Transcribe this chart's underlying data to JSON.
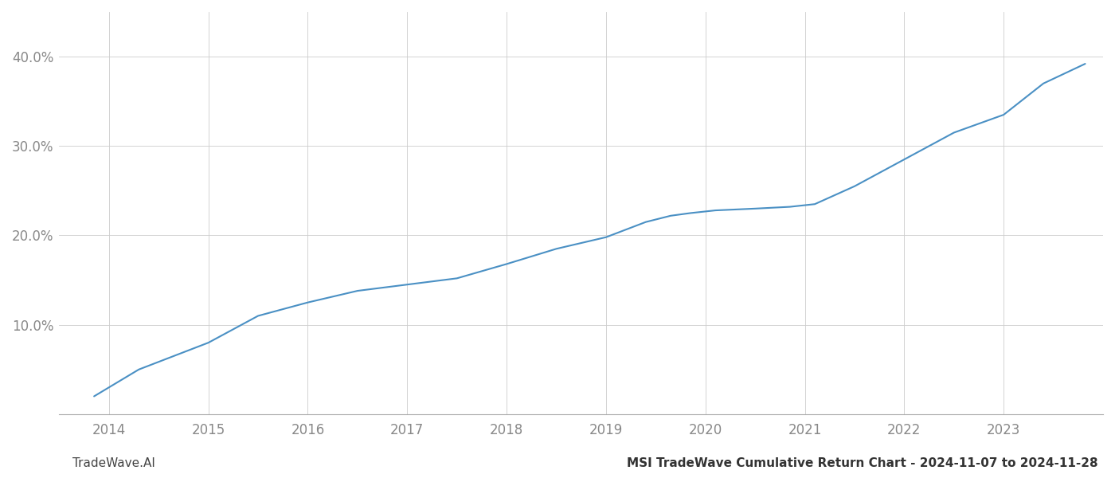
{
  "title": "MSI TradeWave Cumulative Return Chart - 2024-11-07 to 2024-11-28",
  "watermark": "TradeWave.AI",
  "line_color": "#4a90c4",
  "background_color": "#ffffff",
  "grid_color": "#cccccc",
  "x_years": [
    2014,
    2015,
    2016,
    2017,
    2018,
    2019,
    2020,
    2021,
    2022,
    2023
  ],
  "x_data": [
    2013.85,
    2014.3,
    2015.0,
    2015.5,
    2016.0,
    2016.5,
    2017.0,
    2017.5,
    2018.0,
    2018.5,
    2019.0,
    2019.4,
    2019.65,
    2019.85,
    2020.1,
    2020.5,
    2020.85,
    2021.1,
    2021.5,
    2022.0,
    2022.5,
    2023.0,
    2023.4,
    2023.82
  ],
  "y_data": [
    2.0,
    5.0,
    8.0,
    11.0,
    12.5,
    13.8,
    14.5,
    15.2,
    16.8,
    18.5,
    19.8,
    21.5,
    22.2,
    22.5,
    22.8,
    23.0,
    23.2,
    23.5,
    25.5,
    28.5,
    31.5,
    33.5,
    37.0,
    39.2
  ],
  "ylim": [
    0,
    45
  ],
  "xlim": [
    2013.5,
    2024.0
  ],
  "yticks": [
    10.0,
    20.0,
    30.0,
    40.0
  ],
  "ytick_labels": [
    "10.0%",
    "20.0%",
    "30.0%",
    "40.0%"
  ],
  "line_width": 1.5,
  "title_fontsize": 11,
  "tick_fontsize": 12,
  "watermark_fontsize": 11,
  "tick_color": "#888888",
  "spine_color": "#aaaaaa"
}
